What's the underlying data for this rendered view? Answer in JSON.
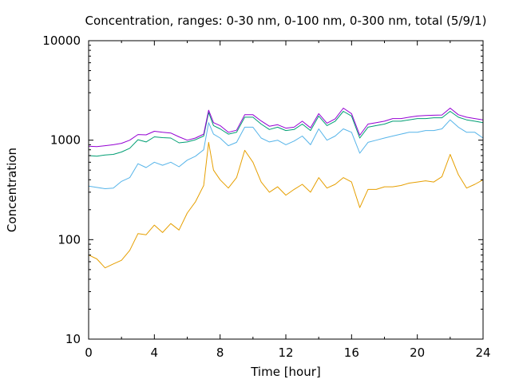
{
  "chart_data": {
    "type": "line",
    "title": "Concentration, ranges: 0-30 nm, 0-100 nm, 0-300 nm, total (5/9/1)",
    "xlabel": "Time [hour]",
    "ylabel": "Concentration",
    "xlim": [
      0,
      24
    ],
    "ylim": [
      10,
      10000
    ],
    "yscale": "log",
    "grid": false,
    "legend": "none",
    "x_ticks": [
      0,
      4,
      8,
      12,
      16,
      20,
      24
    ],
    "x_tick_labels": [
      "0",
      "4",
      "8",
      "12",
      "16",
      "20",
      "24"
    ],
    "y_ticks": [
      10,
      100,
      1000,
      10000
    ],
    "y_tick_labels": [
      "10",
      "100",
      "1000",
      "10000"
    ],
    "x": [
      0,
      0.5,
      1,
      1.5,
      2,
      2.5,
      3,
      3.5,
      4,
      4.5,
      5,
      5.5,
      6,
      6.5,
      7,
      7.3,
      7.6,
      8,
      8.5,
      9,
      9.5,
      10,
      10.5,
      11,
      11.5,
      12,
      12.5,
      13,
      13.5,
      14,
      14.5,
      15,
      15.5,
      16,
      16.5,
      17,
      17.5,
      18,
      18.5,
      19,
      19.5,
      20,
      20.5,
      21,
      21.5,
      22,
      22.5,
      23,
      23.5,
      24
    ],
    "series": [
      {
        "color": "#e69f00",
        "values": [
          70,
          64,
          52,
          57,
          62,
          78,
          115,
          112,
          140,
          118,
          145,
          125,
          185,
          240,
          350,
          950,
          500,
          400,
          330,
          420,
          790,
          600,
          380,
          300,
          340,
          280,
          320,
          360,
          300,
          420,
          330,
          360,
          420,
          380,
          210,
          320,
          320,
          340,
          340,
          350,
          370,
          380,
          390,
          380,
          430,
          720,
          450,
          330,
          360,
          400
        ]
      },
      {
        "color": "#56b4e9",
        "values": [
          345,
          335,
          325,
          330,
          385,
          420,
          580,
          530,
          600,
          560,
          600,
          540,
          630,
          690,
          800,
          1500,
          1150,
          1050,
          880,
          950,
          1350,
          1350,
          1050,
          960,
          1000,
          900,
          980,
          1100,
          900,
          1300,
          1000,
          1100,
          1300,
          1200,
          740,
          950,
          1000,
          1050,
          1100,
          1150,
          1200,
          1200,
          1250,
          1250,
          1300,
          1600,
          1350,
          1200,
          1200,
          1050
        ]
      },
      {
        "color": "#009e73",
        "values": [
          700,
          690,
          710,
          720,
          760,
          830,
          1010,
          960,
          1080,
          1060,
          1050,
          940,
          960,
          1010,
          1100,
          1900,
          1400,
          1300,
          1150,
          1200,
          1700,
          1700,
          1450,
          1280,
          1350,
          1250,
          1280,
          1450,
          1250,
          1750,
          1400,
          1550,
          1950,
          1750,
          1050,
          1350,
          1400,
          1450,
          1550,
          1550,
          1600,
          1650,
          1650,
          1680,
          1680,
          1950,
          1700,
          1600,
          1550,
          1500
        ]
      },
      {
        "color": "#9400d3",
        "values": [
          870,
          860,
          880,
          900,
          930,
          1000,
          1140,
          1130,
          1230,
          1200,
          1180,
          1080,
          1000,
          1050,
          1150,
          2000,
          1500,
          1400,
          1200,
          1260,
          1800,
          1800,
          1560,
          1380,
          1430,
          1320,
          1350,
          1550,
          1330,
          1850,
          1480,
          1640,
          2100,
          1850,
          1120,
          1450,
          1500,
          1550,
          1650,
          1650,
          1700,
          1750,
          1770,
          1780,
          1790,
          2100,
          1800,
          1700,
          1650,
          1600
        ]
      }
    ]
  }
}
